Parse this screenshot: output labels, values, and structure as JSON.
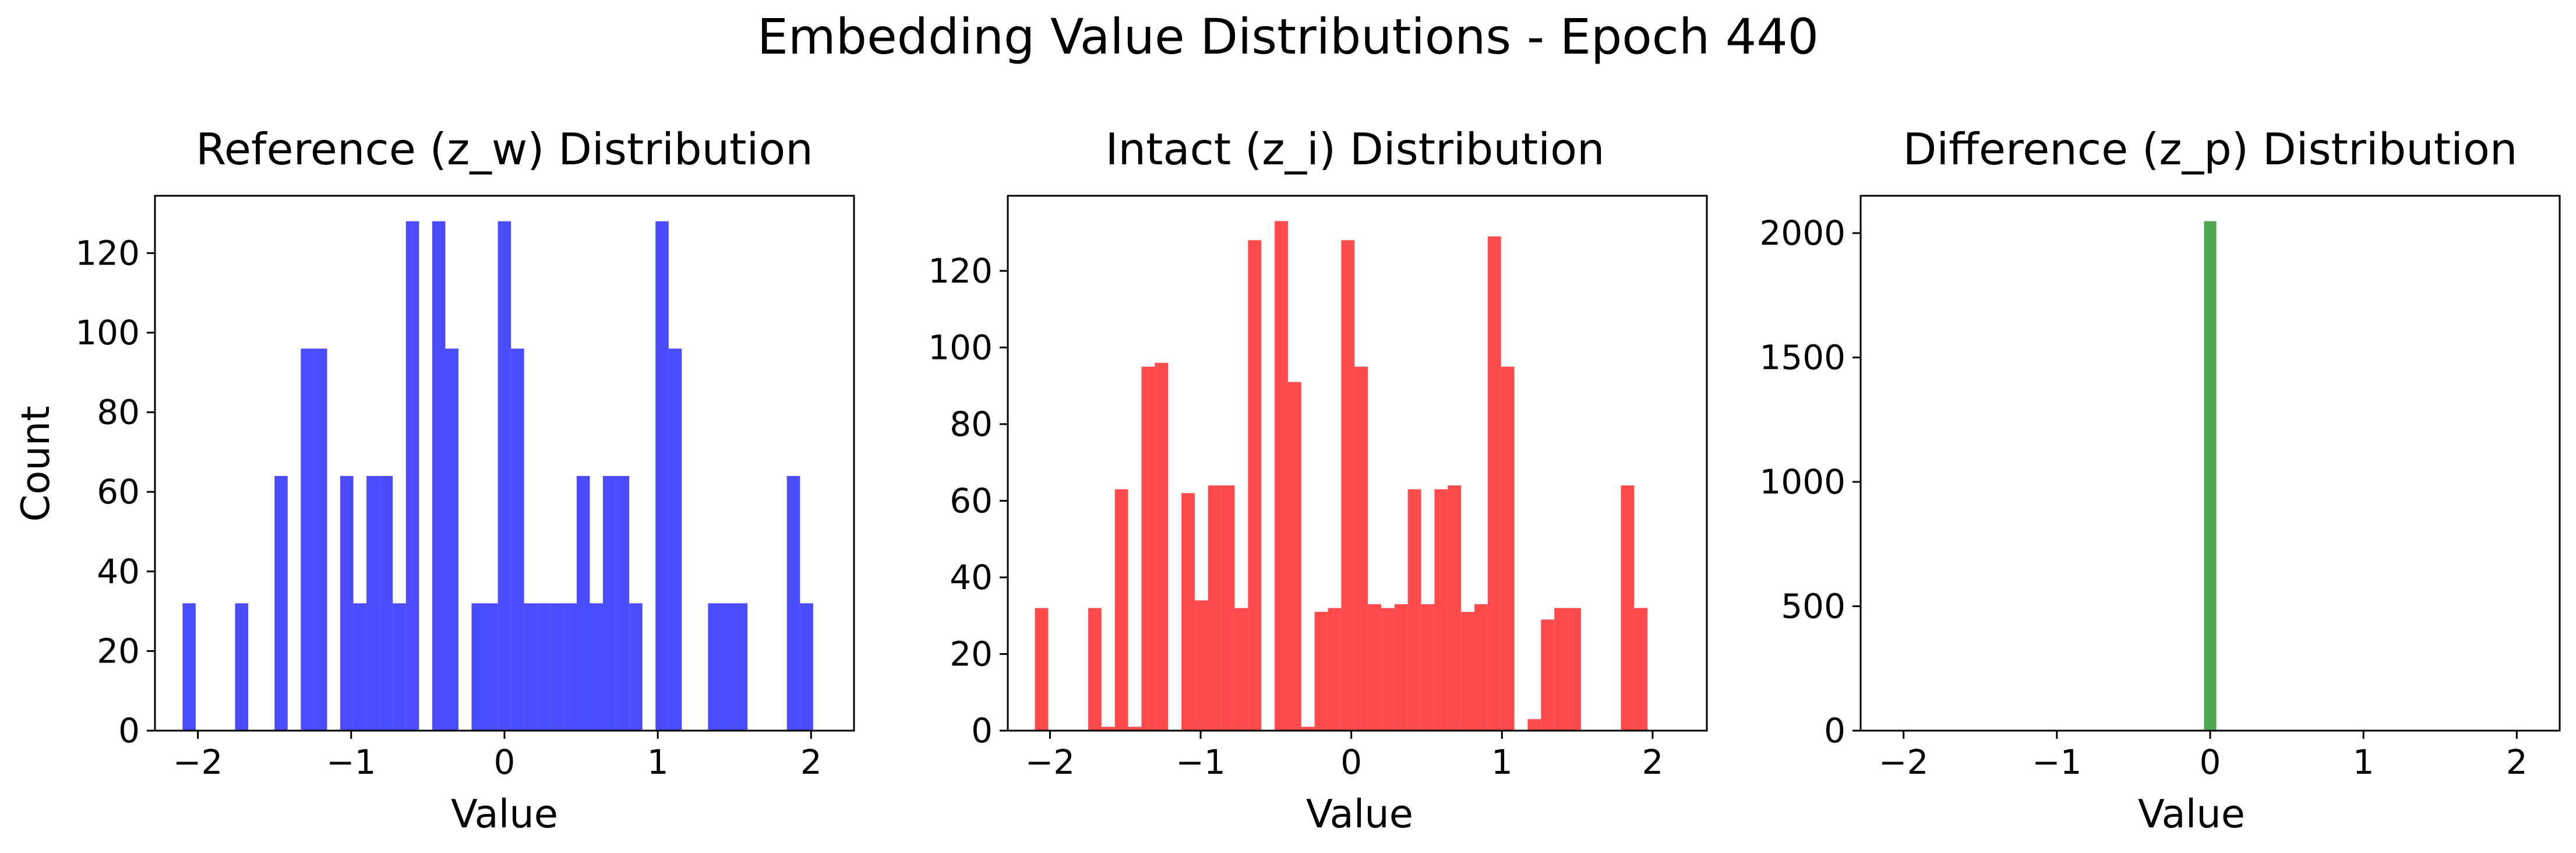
{
  "figure": {
    "title": "Embedding Value Distributions - Epoch 440"
  },
  "chart_data": [
    {
      "type": "bar",
      "chart_style": "histogram",
      "title": "Reference (z_w) Distribution",
      "xlabel": "Value",
      "ylabel": "Count",
      "color": "#4b4bff",
      "xlim": [
        -2.28,
        2.28
      ],
      "ylim": [
        0,
        134.4
      ],
      "xticks": [
        -2,
        -1,
        0,
        1,
        2
      ],
      "xtick_labels": [
        "−2",
        "−1",
        "0",
        "1",
        "2"
      ],
      "yticks": [
        0,
        20,
        40,
        60,
        80,
        100,
        120
      ],
      "ytick_labels": [
        "0",
        "20",
        "40",
        "60",
        "80",
        "100",
        "120"
      ],
      "bin_start": -2.1,
      "bin_width": 0.0857,
      "counts": [
        32,
        0,
        0,
        0,
        32,
        0,
        0,
        64,
        0,
        96,
        96,
        0,
        64,
        32,
        64,
        64,
        32,
        128,
        0,
        128,
        96,
        0,
        32,
        32,
        128,
        96,
        32,
        32,
        32,
        32,
        64,
        32,
        64,
        64,
        32,
        0,
        128,
        96,
        0,
        0,
        32,
        32,
        32,
        0,
        0,
        0,
        64,
        32
      ]
    },
    {
      "type": "bar",
      "chart_style": "histogram",
      "title": "Intact (z_i) Distribution",
      "xlabel": "Value",
      "ylabel": "",
      "color": "#ff4b4b",
      "xlim": [
        -2.28,
        2.36
      ],
      "ylim": [
        0,
        139.6
      ],
      "xticks": [
        -2,
        -1,
        0,
        1,
        2
      ],
      "xtick_labels": [
        "−2",
        "−1",
        "0",
        "1",
        "2"
      ],
      "yticks": [
        0,
        20,
        40,
        60,
        80,
        100,
        120
      ],
      "ytick_labels": [
        "0",
        "20",
        "40",
        "60",
        "80",
        "100",
        "120"
      ],
      "bin_start": -2.1,
      "bin_width": 0.0884,
      "counts": [
        32,
        0,
        0,
        0,
        32,
        1,
        63,
        1,
        95,
        96,
        0,
        62,
        34,
        64,
        64,
        32,
        128,
        0,
        133,
        91,
        1,
        31,
        32,
        128,
        95,
        33,
        32,
        33,
        63,
        33,
        63,
        64,
        31,
        33,
        129,
        95,
        0,
        3,
        29,
        32,
        32,
        0,
        0,
        0,
        64,
        32
      ]
    },
    {
      "type": "bar",
      "chart_style": "histogram",
      "title": "Difference (z_p) Distribution",
      "xlabel": "Value",
      "ylabel": "",
      "color": "#4fa64f",
      "xlim": [
        -2.28,
        2.28
      ],
      "ylim": [
        0,
        2150
      ],
      "xticks": [
        -2,
        -1,
        0,
        1,
        2
      ],
      "xtick_labels": [
        "−2",
        "−1",
        "0",
        "1",
        "2"
      ],
      "yticks": [
        0,
        500,
        1000,
        1500,
        2000
      ],
      "ytick_labels": [
        "0",
        "500",
        "1000",
        "1500",
        "2000"
      ],
      "bin_start": -0.04,
      "bin_width": 0.08,
      "counts": [
        2048
      ]
    }
  ]
}
